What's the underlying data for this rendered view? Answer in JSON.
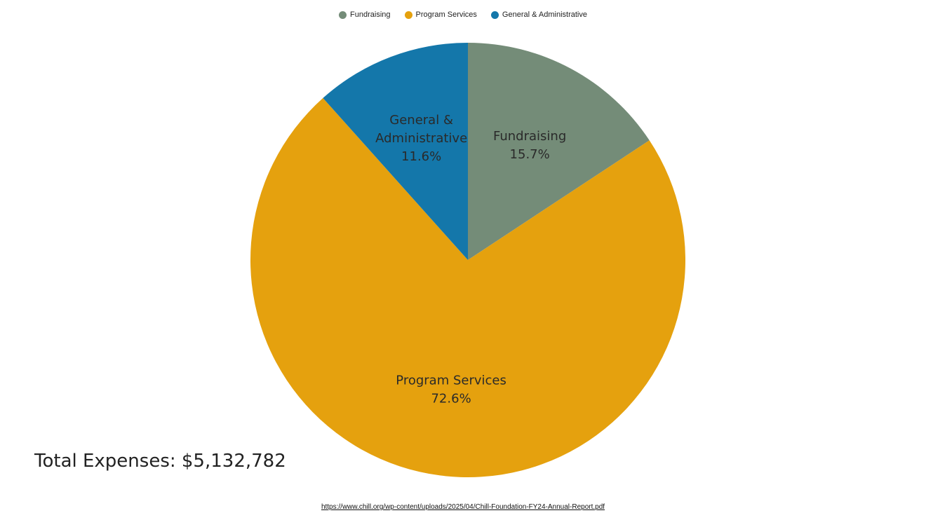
{
  "chart_data": {
    "type": "pie",
    "title": "",
    "start_angle_deg": 0,
    "direction": "clockwise",
    "legend_position": "top-center",
    "slices": [
      {
        "label": "Fundraising",
        "label_lines": [
          "Fundraising"
        ],
        "value": 15.7,
        "value_text": "15.7%",
        "color": "#748c78"
      },
      {
        "label": "Program Services",
        "label_lines": [
          "Program Services"
        ],
        "value": 72.6,
        "value_text": "72.6%",
        "color": "#e5a10e"
      },
      {
        "label": "General & Administrative",
        "label_lines": [
          "General &",
          "Administrative"
        ],
        "value": 11.6,
        "value_text": "11.6%",
        "color": "#1477aa"
      }
    ]
  },
  "total_label": "Total Expenses: $5,132,782",
  "source_url": "https://www.chill.org/wp-content/uploads/2025/04/Chill-Foundation-FY24-Annual-Report.pdf"
}
